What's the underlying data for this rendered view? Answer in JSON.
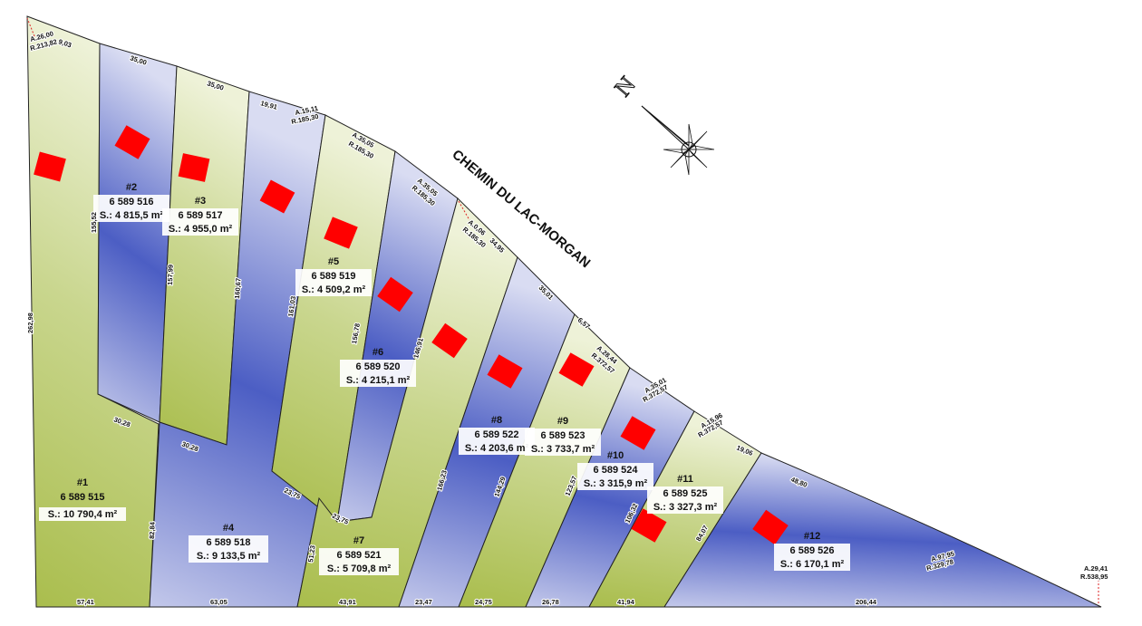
{
  "road_name": "CHEMIN DU LAC-MORGAN",
  "north_letter": "N",
  "lots": [
    {
      "num": "#1",
      "id": "6 589 515",
      "area": "S.: 10 790,4 m²"
    },
    {
      "num": "#2",
      "id": "6 589 516",
      "area": "S.: 4 815,5 m²"
    },
    {
      "num": "#3",
      "id": "6 589 517",
      "area": "S.: 4 955,0 m²"
    },
    {
      "num": "#4",
      "id": "6 589 518",
      "area": "S.: 9 133,5 m²"
    },
    {
      "num": "#5",
      "id": "6 589 519",
      "area": "S.: 4 509,2 m²"
    },
    {
      "num": "#6",
      "id": "6 589 520",
      "area": "S.: 4 215,1 m²"
    },
    {
      "num": "#7",
      "id": "6 589 521",
      "area": "S.: 5 709,8 m²"
    },
    {
      "num": "#8",
      "id": "6 589 522",
      "area": "S.: 4 203,6 m²"
    },
    {
      "num": "#9",
      "id": "6 589 523",
      "area": "S.: 3 733,7 m²"
    },
    {
      "num": "#10",
      "id": "6 589 524",
      "area": "S.: 3 315,9 m²"
    },
    {
      "num": "#11",
      "id": "6 589 525",
      "area": "S.: 3 327,3 m²"
    },
    {
      "num": "#12",
      "id": "6 589 526",
      "area": "S.: 6 170,1 m²"
    }
  ],
  "dims": {
    "top_l1": "9,03",
    "top_l2": "35,00",
    "top_l3": "35,00",
    "top_l4": "19,91",
    "curve1_a": "A.26,00",
    "curve1_r": "R.213,82",
    "curve2_a": "A.15,11",
    "curve2_r": "R.185,30",
    "curve3_a": "A.35,05",
    "curve3_r": "R.185,30",
    "curve4_a": "A.35,05",
    "curve4_r": "R.185,30",
    "curve5_a": "A.0,06",
    "curve5_r": "R.185,30",
    "top_l8": "34,95",
    "top_l9": "35,01",
    "top_l10a": "6,57",
    "curve6_a": "A.28,44",
    "curve6_r": "R.372,57",
    "curve7_a": "A.35,01",
    "curve7_r": "R.372,57",
    "curve8_a": "A.15,96",
    "curve8_r": "R.372,57",
    "top_l11b": "19,06",
    "top_l12": "48,80",
    "curve9_a": "A.97,95",
    "curve9_r": "R.329,78",
    "curve10_a": "A.29,41",
    "curve10_r": "R.538,95",
    "side_a": "262,98",
    "side_b": "155,52",
    "side_c": "157,99",
    "side_d": "160,67",
    "side_e": "161,03",
    "side_f": "156,78",
    "side_g": "146,91",
    "side_h": "166,23",
    "side_i": "144,29",
    "side_j": "123,57",
    "side_k": "106,32",
    "side_l": "84,07",
    "side_m": "82,84",
    "side_n": "51,23",
    "inner_1": "30,28",
    "inner_2": "30,28",
    "inner_3": "23,75",
    "inner_4": "23,75",
    "bot_1": "57,41",
    "bot_2": "63,05",
    "bot_3": "43,91",
    "bot_4": "23,47",
    "bot_5": "24,75",
    "bot_6": "26,78",
    "bot_7": "41,94",
    "bot_8": "206,44"
  },
  "colors": {
    "lot_green": "#a8bc4a",
    "lot_blue": "#4a5cc0",
    "house": "#ff0000"
  }
}
